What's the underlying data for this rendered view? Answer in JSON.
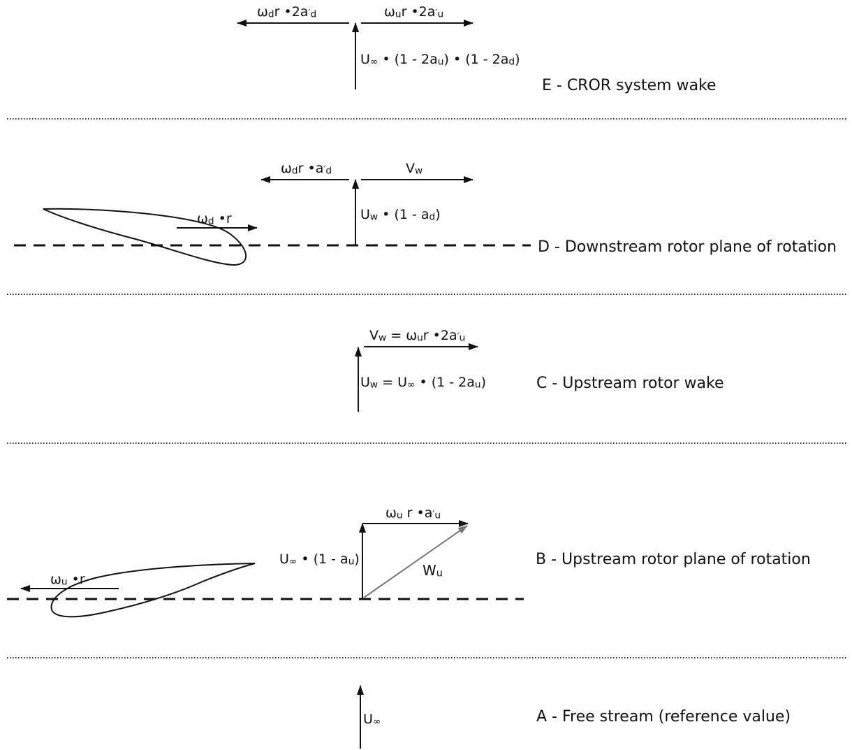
{
  "sections": {
    "e": "E - CROR system wake",
    "d": "D - Downstream rotor plane of rotation",
    "c": "C - Upstream rotor wake",
    "b": "B - Upstream rotor plane of rotation",
    "a": "A - Free stream (reference value)"
  },
  "sym": {
    "omega": "ω",
    "u_inf": "U",
    "infinity": "∞",
    "dot": "•",
    "r": "r",
    "a": "a",
    "prime": "′",
    "two_a": "2a",
    "one_minus_2a": "(1 - 2a",
    "one_minus_a": "(1 - a",
    "close_paren": ")",
    "equals": "=",
    "v": "V",
    "w": "W",
    "sub_d": "d",
    "sub_u": "u",
    "sub_w": "w"
  },
  "colors": {
    "ink": "#111111",
    "resultant": "#777777"
  }
}
